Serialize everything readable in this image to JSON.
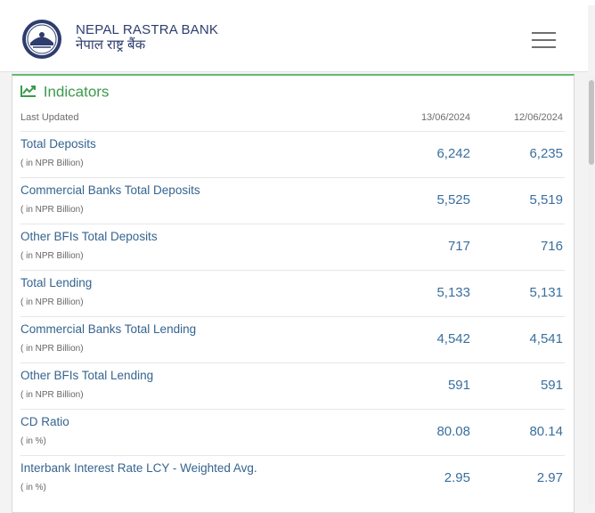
{
  "header": {
    "brand_en": "NEPAL RASTRA BANK",
    "brand_np": "नेपाल राष्ट्र बैंक",
    "logo_icon": "nrb-seal-logo",
    "menu_icon": "hamburger-menu-icon"
  },
  "indicators": {
    "title": "Indicators",
    "title_icon": "line-chart-icon",
    "accent_color": "#3c9a4c",
    "last_updated_label": "Last Updated",
    "date1": "13/06/2024",
    "date2": "12/06/2024",
    "rows": [
      {
        "name": "Total Deposits",
        "unit": "( in NPR Billion)",
        "v1": "6,242",
        "v2": "6,235"
      },
      {
        "name": "Commercial Banks Total Deposits",
        "unit": "( in NPR Billion)",
        "v1": "5,525",
        "v2": "5,519"
      },
      {
        "name": "Other BFIs Total Deposits",
        "unit": "( in NPR Billion)",
        "v1": "717",
        "v2": "716"
      },
      {
        "name": "Total Lending",
        "unit": "( in NPR Billion)",
        "v1": "5,133",
        "v2": "5,131"
      },
      {
        "name": "Commercial Banks Total Lending",
        "unit": "( in NPR Billion)",
        "v1": "4,542",
        "v2": "4,541"
      },
      {
        "name": "Other BFIs Total Lending",
        "unit": "( in NPR Billion)",
        "v1": "591",
        "v2": "591"
      },
      {
        "name": "CD Ratio",
        "unit": "( in %)",
        "v1": "80.08",
        "v2": "80.14"
      },
      {
        "name": "Interbank Interest Rate LCY - Weighted Avg.",
        "unit": "( in %)",
        "v1": "2.95",
        "v2": "2.97"
      }
    ]
  }
}
